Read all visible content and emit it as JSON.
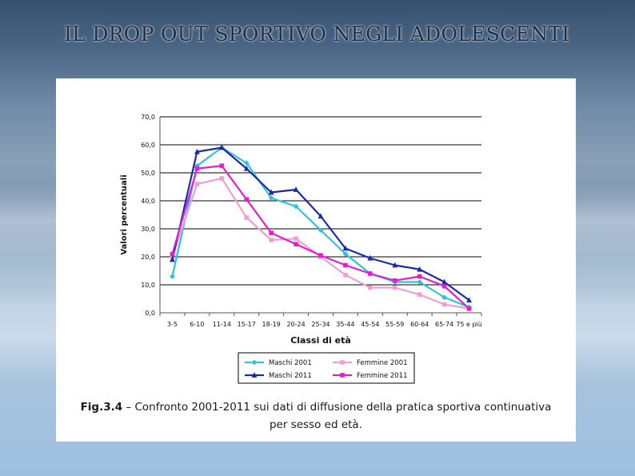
{
  "slide": {
    "title": "IL DROP OUT SPORTIVO NEGLI ADOLESCENTI"
  },
  "caption": {
    "label": "Fig.3.4",
    "text": " – Confronto 2001-2011 sui dati di diffusione della pratica sportiva continuativa",
    "line2": "per sesso ed età."
  },
  "chart_data": {
    "type": "line",
    "xlabel": "Classi di età",
    "ylabel": "Valori percentuali",
    "ylim": [
      0,
      70
    ],
    "yticks": [
      "0,0",
      "10,0",
      "20,0",
      "30,0",
      "40,0",
      "50,0",
      "60,0",
      "70,0"
    ],
    "categories": [
      "3-5",
      "6-10",
      "11-14",
      "15-17",
      "18-19",
      "20-24",
      "25-34",
      "35-44",
      "45-54",
      "55-59",
      "60-64",
      "65-74",
      "75 e più"
    ],
    "grid": true,
    "legend_position": "bottom",
    "series": [
      {
        "name": "Maschi 2001",
        "color": "#2ec4d6",
        "marker": "diamond",
        "values": [
          13.0,
          52.5,
          59.0,
          53.5,
          41.0,
          38.0,
          29.5,
          21.0,
          14.0,
          11.0,
          11.0,
          5.5,
          2.0
        ]
      },
      {
        "name": "Femmine 2001",
        "color": "#f0a0d0",
        "marker": "square",
        "values": [
          20.0,
          46.0,
          48.0,
          34.0,
          26.0,
          26.5,
          20.0,
          13.5,
          9.0,
          9.0,
          6.5,
          3.0,
          1.5
        ]
      },
      {
        "name": "Maschi 2011",
        "color": "#1a2aa8",
        "marker": "triangle",
        "values": [
          19.0,
          57.5,
          59.0,
          51.5,
          43.0,
          44.0,
          34.5,
          23.0,
          19.5,
          17.0,
          15.5,
          11.0,
          4.5
        ]
      },
      {
        "name": "Femmine 2011",
        "color": "#e020d0",
        "marker": "square",
        "values": [
          21.0,
          51.5,
          52.5,
          40.5,
          28.5,
          24.5,
          20.5,
          17.0,
          14.0,
          11.5,
          13.0,
          9.5,
          1.5
        ]
      }
    ]
  }
}
